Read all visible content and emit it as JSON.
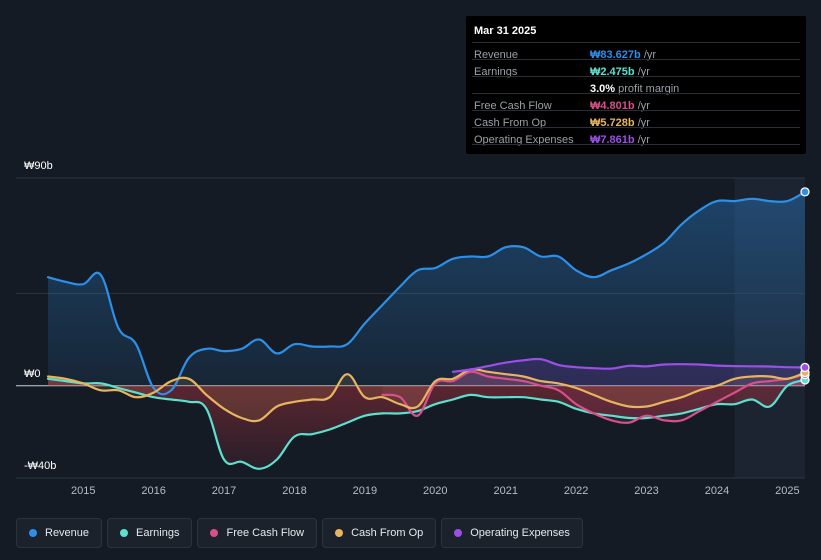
{
  "chart_data": {
    "type": "line",
    "title": "",
    "ylim": [
      -40,
      90
    ],
    "y_axis_labels": {
      "top": "₩90b",
      "zero": "₩0",
      "bottom": "-₩40b"
    },
    "x_ticks": [
      "2015",
      "2016",
      "2017",
      "2018",
      "2019",
      "2020",
      "2021",
      "2022",
      "2023",
      "2024",
      "2025"
    ],
    "x_tick_values": [
      2015,
      2016,
      2017,
      2018,
      2019,
      2020,
      2021,
      2022,
      2023,
      2024,
      2025
    ],
    "xlim": [
      2014.5,
      2025.25
    ],
    "forecast_shade_start": 2024.25,
    "series": [
      {
        "name": "Revenue",
        "color": "#2d8fe8",
        "fill": true,
        "x": [
          2014.5,
          2014.75,
          2015.0,
          2015.25,
          2015.5,
          2015.75,
          2016.0,
          2016.25,
          2016.5,
          2016.75,
          2017.0,
          2017.25,
          2017.5,
          2017.75,
          2018.0,
          2018.25,
          2018.5,
          2018.75,
          2019.0,
          2019.25,
          2019.5,
          2019.75,
          2020.0,
          2020.25,
          2020.5,
          2020.75,
          2021.0,
          2021.25,
          2021.5,
          2021.75,
          2022.0,
          2022.25,
          2022.5,
          2022.75,
          2023.0,
          2023.25,
          2023.5,
          2023.75,
          2024.0,
          2024.25,
          2024.5,
          2024.75,
          2025.0,
          2025.25
        ],
        "values": [
          47,
          45,
          44,
          48,
          25,
          18,
          -1,
          -2,
          12,
          16,
          15,
          16,
          20,
          14,
          18,
          17,
          17,
          18,
          27,
          35,
          43,
          50,
          51,
          55,
          56,
          56,
          60,
          60,
          56,
          56,
          50,
          47,
          50,
          53,
          57,
          62,
          70,
          76,
          80,
          80,
          81,
          80,
          80,
          84
        ]
      },
      {
        "name": "Earnings",
        "color": "#5ce0cf",
        "fill": true,
        "x": [
          2014.5,
          2014.75,
          2015.0,
          2015.25,
          2015.5,
          2015.75,
          2016.0,
          2016.25,
          2016.5,
          2016.75,
          2017.0,
          2017.25,
          2017.5,
          2017.75,
          2018.0,
          2018.25,
          2018.5,
          2018.75,
          2019.0,
          2019.25,
          2019.5,
          2019.75,
          2020.0,
          2020.25,
          2020.5,
          2020.75,
          2021.0,
          2021.25,
          2021.5,
          2021.75,
          2022.0,
          2022.25,
          2022.5,
          2022.75,
          2023.0,
          2023.25,
          2023.5,
          2023.75,
          2024.0,
          2024.25,
          2024.5,
          2024.75,
          2025.0,
          2025.25
        ],
        "values": [
          3,
          2,
          1,
          1,
          -1,
          -3,
          -5,
          -6,
          -7,
          -10,
          -32,
          -33,
          -36,
          -32,
          -22,
          -21,
          -19,
          -16,
          -13,
          -12,
          -12,
          -11,
          -8,
          -6,
          -4,
          -5,
          -5,
          -5,
          -6,
          -7,
          -10,
          -12,
          -13,
          -14,
          -14,
          -13,
          -12,
          -10,
          -8,
          -8,
          -6,
          -9,
          0,
          2.5
        ]
      },
      {
        "name": "Free Cash Flow",
        "color": "#d94f8a",
        "fill": true,
        "x": [
          2019.25,
          2019.5,
          2019.75,
          2020.0,
          2020.25,
          2020.5,
          2020.75,
          2021.0,
          2021.25,
          2021.5,
          2021.75,
          2022.0,
          2022.25,
          2022.5,
          2022.75,
          2023.0,
          2023.25,
          2023.5,
          2023.75,
          2024.0,
          2024.25,
          2024.5,
          2024.75,
          2025.0,
          2025.25
        ],
        "values": [
          -4,
          -5,
          -13,
          1,
          2,
          6,
          4,
          3,
          2,
          0,
          -2,
          -8,
          -12,
          -15,
          -16,
          -13,
          -15,
          -15,
          -11,
          -7,
          -3,
          1,
          2,
          3,
          4.8
        ]
      },
      {
        "name": "Cash From Op",
        "color": "#e8b45e",
        "fill": true,
        "x": [
          2014.5,
          2014.75,
          2015.0,
          2015.25,
          2015.5,
          2015.75,
          2016.0,
          2016.25,
          2016.5,
          2016.75,
          2017.0,
          2017.25,
          2017.5,
          2017.75,
          2018.0,
          2018.25,
          2018.5,
          2018.75,
          2019.0,
          2019.25,
          2019.5,
          2019.75,
          2020.0,
          2020.25,
          2020.5,
          2020.75,
          2021.0,
          2021.25,
          2021.5,
          2021.75,
          2022.0,
          2022.25,
          2022.5,
          2022.75,
          2023.0,
          2023.25,
          2023.5,
          2023.75,
          2024.0,
          2024.25,
          2024.5,
          2024.75,
          2025.0,
          2025.25
        ],
        "values": [
          4,
          3,
          1,
          -2,
          -2,
          -5,
          -3,
          2,
          3,
          -4,
          -10,
          -14,
          -15,
          -9,
          -7,
          -6,
          -5,
          5,
          -5,
          -5,
          -8,
          -9,
          2,
          3,
          7,
          6,
          5,
          4,
          2,
          1,
          -1,
          -4,
          -7,
          -9,
          -9,
          -7,
          -5,
          -2,
          0,
          3,
          4,
          4,
          3,
          5.7
        ]
      },
      {
        "name": "Operating Expenses",
        "color": "#9b4fe8",
        "fill": true,
        "x": [
          2020.25,
          2020.5,
          2020.75,
          2021.0,
          2021.25,
          2021.5,
          2021.75,
          2022.0,
          2022.25,
          2022.5,
          2022.75,
          2023.0,
          2023.25,
          2023.5,
          2023.75,
          2024.0,
          2024.25,
          2024.5,
          2024.75,
          2025.0,
          2025.25
        ],
        "values": [
          6,
          7,
          8.5,
          10,
          11,
          11.5,
          9,
          8,
          7.6,
          7.4,
          8.6,
          8.4,
          9.2,
          9.3,
          9.2,
          8.7,
          8.5,
          8.4,
          8.3,
          8,
          7.9
        ]
      }
    ]
  },
  "tooltip": {
    "date": "Mar 31 2025",
    "rows": [
      {
        "label": "Revenue",
        "value": "₩83.627b",
        "unit": "/yr",
        "color": "#2d8fe8"
      },
      {
        "label": "Earnings",
        "value": "₩2.475b",
        "unit": "/yr",
        "color": "#5ce0cf"
      },
      {
        "label": "",
        "value": "3.0%",
        "unit": "profit margin",
        "color": "#ffffff"
      },
      {
        "label": "Free Cash Flow",
        "value": "₩4.801b",
        "unit": "/yr",
        "color": "#d94f8a"
      },
      {
        "label": "Cash From Op",
        "value": "₩5.728b",
        "unit": "/yr",
        "color": "#e8b45e"
      },
      {
        "label": "Operating Expenses",
        "value": "₩7.861b",
        "unit": "/yr",
        "color": "#9b4fe8"
      }
    ]
  },
  "legend": [
    {
      "label": "Revenue",
      "color": "#2d8fe8"
    },
    {
      "label": "Earnings",
      "color": "#5ce0cf"
    },
    {
      "label": "Free Cash Flow",
      "color": "#d94f8a"
    },
    {
      "label": "Cash From Op",
      "color": "#e8b45e"
    },
    {
      "label": "Operating Expenses",
      "color": "#9b4fe8"
    }
  ]
}
